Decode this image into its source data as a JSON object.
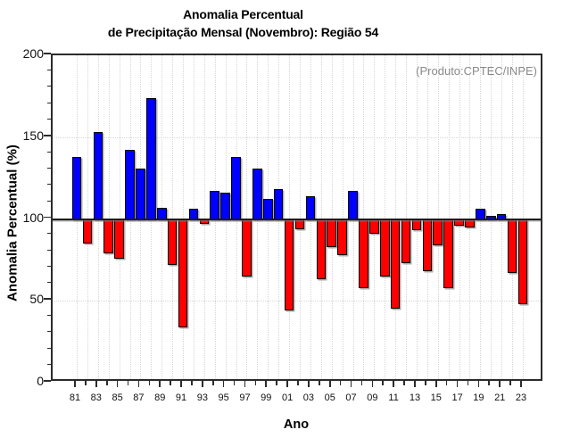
{
  "figure": {
    "title_line1": "Anomalia Percentual",
    "title_line2": "de Precipitação Mensal (Novembro): Região 54",
    "annotation": "(Produto:CPTEC/INPE)",
    "ylabel": "Anomalia Percentual (%)",
    "xlabel": "Ano"
  },
  "chart_data": {
    "type": "bar",
    "title": "Anomalia Percentual de Precipitação Mensal (Novembro): Região 54",
    "xlabel": "Ano",
    "ylabel": "Anomalia Percentual (%)",
    "annotation": "(Produto:CPTEC/INPE)",
    "baseline": 100,
    "ylim": [
      0,
      200
    ],
    "yticks": [
      0,
      50,
      100,
      150,
      200
    ],
    "grid": "dotted",
    "legend": "none",
    "categories": [
      "81",
      "82",
      "83",
      "84",
      "85",
      "86",
      "87",
      "88",
      "89",
      "90",
      "91",
      "92",
      "93",
      "94",
      "95",
      "96",
      "97",
      "98",
      "99",
      "00",
      "01",
      "02",
      "03",
      "04",
      "05",
      "06",
      "07",
      "08",
      "09",
      "10",
      "11",
      "12",
      "13",
      "14",
      "15",
      "16",
      "17",
      "18",
      "19",
      "20",
      "21",
      "22",
      "23"
    ],
    "values": [
      138,
      85,
      153,
      79,
      76,
      142,
      131,
      174,
      107,
      72,
      34,
      106,
      97,
      117,
      116,
      138,
      65,
      131,
      112,
      118,
      44,
      94,
      114,
      63,
      83,
      78,
      117,
      58,
      91,
      65,
      45,
      73,
      93,
      68,
      84,
      58,
      96,
      95,
      106,
      102,
      103,
      67,
      48
    ],
    "x_tick_labels_shown": [
      "81",
      "83",
      "85",
      "87",
      "89",
      "91",
      "93",
      "95",
      "97",
      "99",
      "01",
      "03",
      "05",
      "07",
      "09",
      "11",
      "13",
      "15",
      "17",
      "19",
      "21",
      "23"
    ],
    "colors": {
      "above_baseline": "#0000ff",
      "below_baseline": "#ff0000",
      "annotation_text": "#8a8a8a",
      "axis": "#2b2b2b",
      "gridline": "#d6d6d6"
    }
  }
}
